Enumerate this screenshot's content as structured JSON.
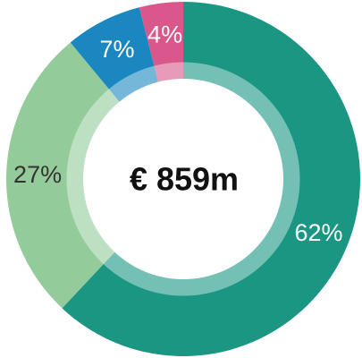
{
  "chart_data": {
    "type": "donut",
    "center_label": "€ 859m",
    "values": [
      62,
      27,
      7,
      4
    ],
    "value_labels": [
      "62%",
      "27%",
      "7%",
      "4%"
    ],
    "colors": [
      "#1a9683",
      "#93cc9a",
      "#1a87c0",
      "#d9578a"
    ],
    "label_colors": [
      "#ffffff",
      "#333333",
      "#ffffff",
      "#ffffff"
    ]
  }
}
